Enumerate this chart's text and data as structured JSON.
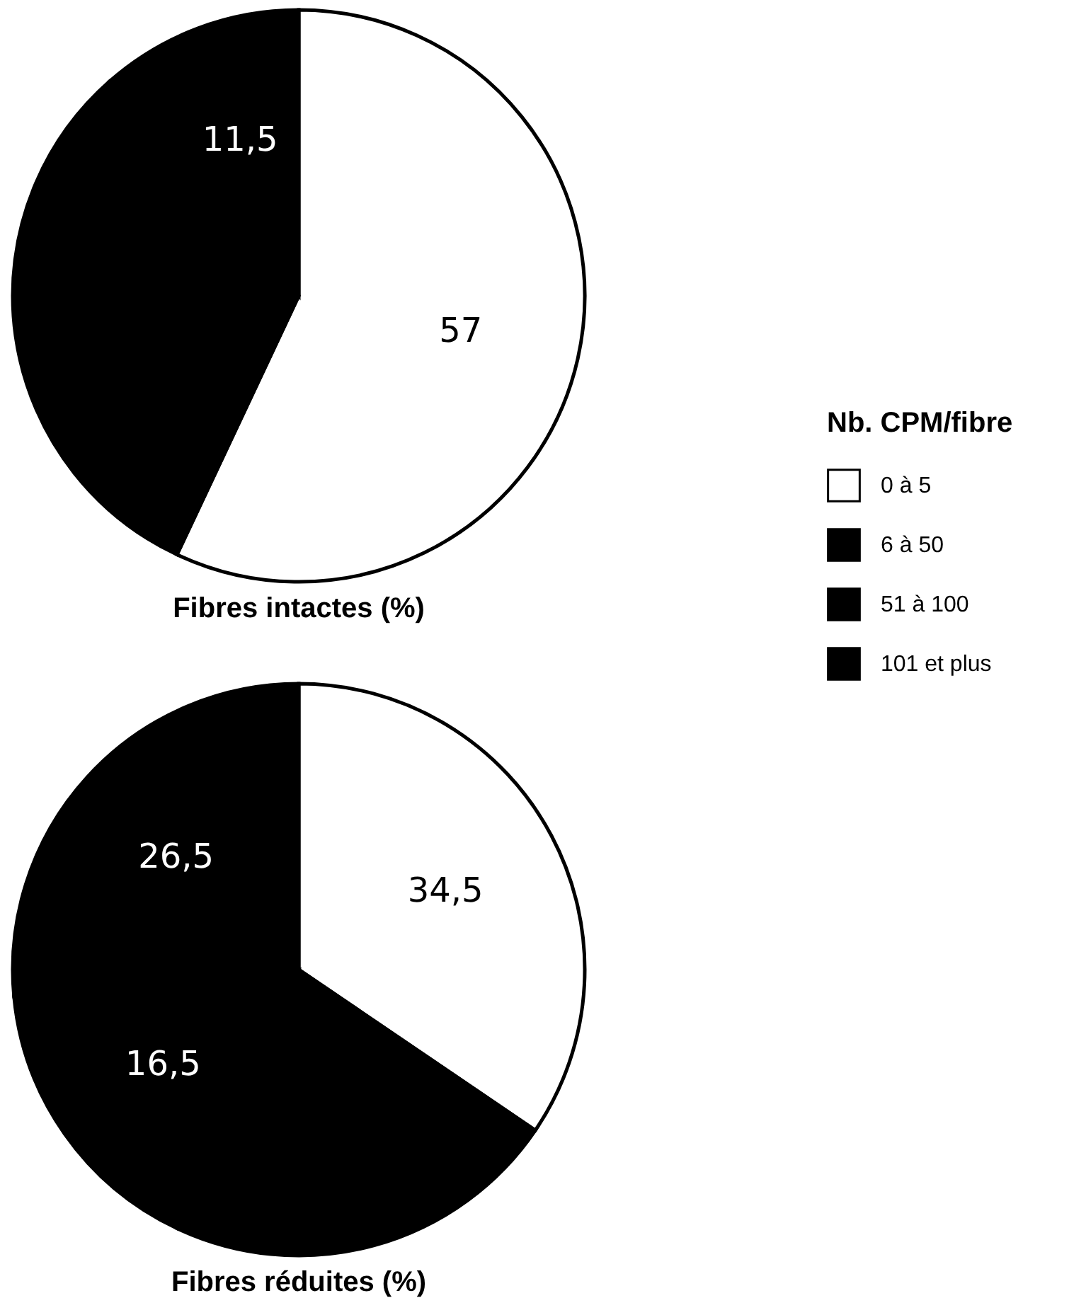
{
  "chart_data": [
    {
      "type": "pie",
      "title": "Fibres intactes (%)",
      "legend_title": "Nb. CPM/fibre",
      "legend": "right",
      "categories": [
        "0 à 5",
        "6 à 50",
        "51 à 100",
        "101 et plus"
      ],
      "values": [
        57,
        31.5,
        11.5,
        null
      ],
      "value_labels": [
        "57",
        null,
        "11,5",
        null
      ],
      "colors": [
        "#ffffff",
        "#000000",
        "#000000",
        "#000000"
      ]
    },
    {
      "type": "pie",
      "title": "Fibres réduites (%)",
      "legend": false,
      "categories": [
        null,
        null,
        null,
        null
      ],
      "values": [
        34.5,
        22.5,
        16.5,
        26.5
      ],
      "value_labels": [
        "34,5",
        null,
        "16,5",
        "26,5"
      ],
      "colors": [
        "#ffffff",
        "#000000",
        "#000000",
        "#000000"
      ]
    }
  ]
}
